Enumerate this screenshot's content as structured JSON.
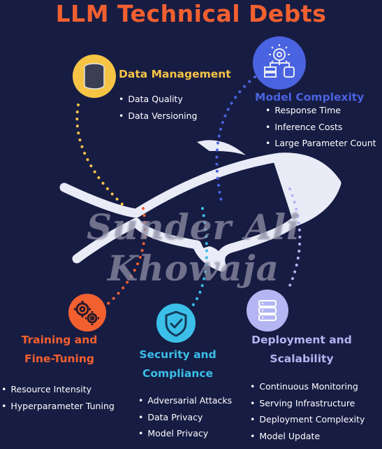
{
  "title": "LLM Technical Debts",
  "watermark": "Sunder Ali Khowaja",
  "colors": {
    "background": "#171c43",
    "title": "#f26030",
    "data_management": "#f6c445",
    "model_complexity": "#4a63e0",
    "training": "#f26030",
    "security": "#3bbfe8",
    "deployment": "#b3b6f2",
    "fish": "#e9ecf7"
  },
  "sections": {
    "data_management": {
      "heading": "Data Management",
      "icon": "database-icon",
      "items": [
        "Data Quality",
        "Data Versioning"
      ]
    },
    "model_complexity": {
      "heading": "Model Complexity",
      "icon": "gear-servers-icon",
      "items": [
        "Response Time",
        "Inference Costs",
        "Large Parameter Count"
      ]
    },
    "training": {
      "heading_line1": "Training and",
      "heading_line2": "Fine-Tuning",
      "icon": "gears-icon",
      "items": [
        "Resource Intensity",
        "Hyperparameter Tuning"
      ]
    },
    "security": {
      "heading_line1": "Security and",
      "heading_line2": "Compliance",
      "icon": "shield-check-icon",
      "items": [
        "Adversarial Attacks",
        "Data Privacy",
        "Model Privacy"
      ]
    },
    "deployment": {
      "heading_line1": "Deployment and",
      "heading_line2": "Scalability",
      "icon": "server-icon",
      "items": [
        "Continuous Monitoring",
        "Serving Infrastructure",
        "Deployment Complexity",
        "Model Update"
      ]
    }
  }
}
